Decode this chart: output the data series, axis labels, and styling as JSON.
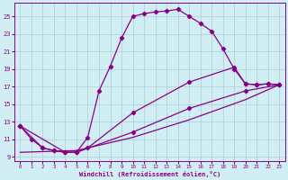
{
  "xlabel": "Windchill (Refroidissement éolien,°C)",
  "bg_color": "#d0eef4",
  "grid_color": "#b0d4dc",
  "line_color": "#880088",
  "xlim": [
    -0.5,
    23.5
  ],
  "ylim": [
    8.5,
    26.5
  ],
  "yticks": [
    9,
    11,
    13,
    15,
    17,
    19,
    21,
    23,
    25
  ],
  "xticks": [
    0,
    1,
    2,
    3,
    4,
    5,
    6,
    7,
    8,
    9,
    10,
    11,
    12,
    13,
    14,
    15,
    16,
    17,
    18,
    19,
    20,
    21,
    22,
    23
  ],
  "curve1_x": [
    0,
    1,
    2,
    3,
    4,
    5,
    6,
    7,
    8,
    9,
    10,
    11,
    12,
    13,
    14,
    15,
    16,
    17,
    18,
    19,
    20,
    21,
    22,
    23
  ],
  "curve1_y": [
    12.5,
    11.0,
    10.0,
    9.7,
    9.5,
    9.5,
    11.2,
    16.5,
    19.3,
    22.5,
    25.0,
    25.3,
    25.5,
    25.6,
    25.8,
    25.0,
    24.2,
    23.3,
    21.3,
    19.0,
    17.3,
    17.2,
    17.3,
    17.2
  ],
  "curve2_x": [
    0,
    2,
    3,
    4,
    5,
    6,
    10,
    15,
    19,
    20,
    21,
    22,
    23
  ],
  "curve2_y": [
    12.5,
    10.0,
    9.7,
    9.5,
    9.5,
    10.0,
    14.0,
    17.5,
    19.2,
    17.3,
    17.2,
    17.3,
    17.2
  ],
  "curve3_x": [
    0,
    4,
    5,
    10,
    15,
    20,
    23
  ],
  "curve3_y": [
    12.5,
    9.5,
    9.5,
    11.8,
    14.5,
    16.5,
    17.2
  ],
  "curve4_x": [
    0,
    5,
    10,
    15,
    20,
    23
  ],
  "curve4_y": [
    9.5,
    9.7,
    11.2,
    13.2,
    15.5,
    17.2
  ]
}
